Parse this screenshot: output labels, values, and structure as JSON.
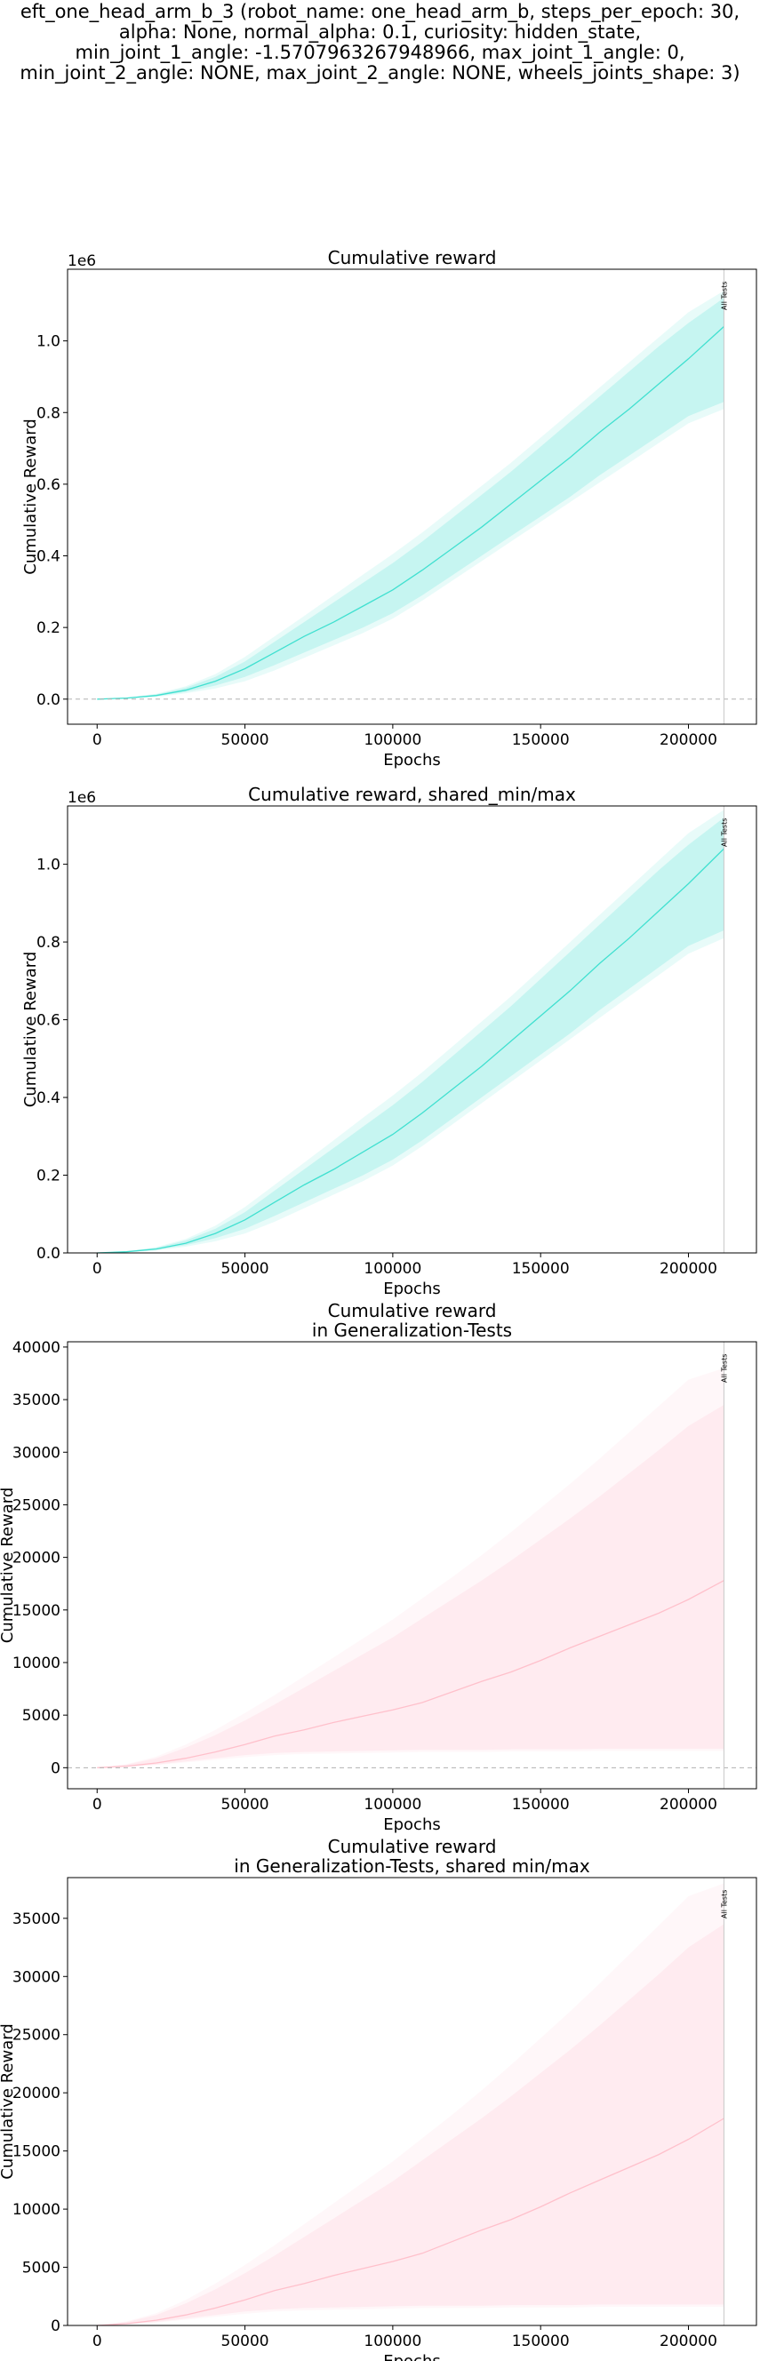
{
  "suptitle_lines": [
    "eft_one_head_arm_b_3 (robot_name: one_head_arm_b, steps_per_epoch: 30,",
    "alpha: None, normal_alpha: 0.1, curiosity: hidden_state,",
    "min_joint_1_angle: -1.5707963267948966, max_joint_1_angle: 0,",
    "min_joint_2_angle: NONE, max_joint_2_angle: NONE, wheels_joints_shape: 3)"
  ],
  "chart_data": [
    {
      "type": "line",
      "title": [
        "Cumulative reward"
      ],
      "xlabel": "Epochs",
      "ylabel": "Cumulative Reward",
      "offset_label": "1e6",
      "xlim": [
        -10000,
        223000
      ],
      "ylim": [
        -70000,
        1200000
      ],
      "xticks": [
        0,
        50000,
        100000,
        150000,
        200000
      ],
      "yticks": [
        0,
        200000,
        400000,
        600000,
        800000,
        1000000
      ],
      "ytick_labels": [
        "0.0",
        "0.2",
        "0.4",
        "0.6",
        "0.8",
        "1.0"
      ],
      "zero_line": true,
      "vline": {
        "x": 212000,
        "label": "All Tests"
      },
      "color": "#40e0d0",
      "series": [
        {
          "x": [
            0,
            10000,
            20000,
            30000,
            40000,
            50000,
            60000,
            70000,
            80000,
            90000,
            100000,
            110000,
            120000,
            130000,
            140000,
            150000,
            160000,
            170000,
            180000,
            190000,
            200000,
            212000
          ],
          "mean": [
            0,
            3000,
            10000,
            25000,
            50000,
            85000,
            130000,
            175000,
            215000,
            260000,
            305000,
            360000,
            420000,
            480000,
            545000,
            610000,
            675000,
            745000,
            810000,
            880000,
            950000,
            1040000
          ],
          "inner_low": [
            0,
            2000,
            8000,
            20000,
            38000,
            62000,
            95000,
            130000,
            165000,
            200000,
            240000,
            290000,
            345000,
            400000,
            455000,
            510000,
            565000,
            625000,
            680000,
            735000,
            790000,
            830000
          ],
          "inner_high": [
            0,
            4000,
            13000,
            32000,
            62000,
            105000,
            160000,
            215000,
            270000,
            325000,
            380000,
            440000,
            505000,
            570000,
            635000,
            705000,
            775000,
            845000,
            915000,
            985000,
            1050000,
            1120000
          ],
          "outer_low": [
            0,
            1500,
            6000,
            16000,
            30000,
            50000,
            80000,
            115000,
            150000,
            185000,
            225000,
            275000,
            330000,
            385000,
            440000,
            495000,
            550000,
            605000,
            660000,
            715000,
            770000,
            810000
          ],
          "outer_high": [
            0,
            5000,
            15000,
            36000,
            70000,
            118000,
            175000,
            232000,
            290000,
            348000,
            405000,
            465000,
            530000,
            595000,
            660000,
            730000,
            800000,
            870000,
            940000,
            1010000,
            1080000,
            1140000
          ]
        }
      ]
    },
    {
      "type": "line",
      "title": [
        "Cumulative reward, shared_min/max"
      ],
      "xlabel": "Epochs",
      "ylabel": "Cumulative Reward",
      "offset_label": "1e6",
      "xlim": [
        -10000,
        223000
      ],
      "ylim": [
        0,
        1150000
      ],
      "xticks": [
        0,
        50000,
        100000,
        150000,
        200000
      ],
      "yticks": [
        0,
        200000,
        400000,
        600000,
        800000,
        1000000
      ],
      "ytick_labels": [
        "0.0",
        "0.2",
        "0.4",
        "0.6",
        "0.8",
        "1.0"
      ],
      "zero_line": false,
      "vline": {
        "x": 212000,
        "label": "All Tests"
      },
      "color": "#40e0d0",
      "series": [
        {
          "x": [
            0,
            10000,
            20000,
            30000,
            40000,
            50000,
            60000,
            70000,
            80000,
            90000,
            100000,
            110000,
            120000,
            130000,
            140000,
            150000,
            160000,
            170000,
            180000,
            190000,
            200000,
            212000
          ],
          "mean": [
            0,
            3000,
            10000,
            25000,
            50000,
            85000,
            130000,
            175000,
            215000,
            260000,
            305000,
            360000,
            420000,
            480000,
            545000,
            610000,
            675000,
            745000,
            810000,
            880000,
            950000,
            1040000
          ],
          "inner_low": [
            0,
            2000,
            8000,
            20000,
            38000,
            62000,
            95000,
            130000,
            165000,
            200000,
            240000,
            290000,
            345000,
            400000,
            455000,
            510000,
            565000,
            625000,
            680000,
            735000,
            790000,
            830000
          ],
          "inner_high": [
            0,
            4000,
            13000,
            32000,
            62000,
            105000,
            160000,
            215000,
            270000,
            325000,
            380000,
            440000,
            505000,
            570000,
            635000,
            705000,
            775000,
            845000,
            915000,
            985000,
            1050000,
            1120000
          ],
          "outer_low": [
            0,
            1500,
            6000,
            16000,
            30000,
            50000,
            80000,
            115000,
            150000,
            185000,
            225000,
            275000,
            330000,
            385000,
            440000,
            495000,
            550000,
            605000,
            660000,
            715000,
            770000,
            810000
          ],
          "outer_high": [
            0,
            5000,
            15000,
            36000,
            70000,
            118000,
            175000,
            232000,
            290000,
            348000,
            405000,
            465000,
            530000,
            595000,
            660000,
            730000,
            800000,
            870000,
            940000,
            1010000,
            1080000,
            1140000
          ]
        }
      ]
    },
    {
      "type": "line",
      "title": [
        "Cumulative reward",
        "in Generalization-Tests"
      ],
      "xlabel": "Epochs",
      "ylabel": "Cumulative Reward",
      "offset_label": "",
      "xlim": [
        -10000,
        223000
      ],
      "ylim": [
        -2000,
        40500
      ],
      "xticks": [
        0,
        50000,
        100000,
        150000,
        200000
      ],
      "yticks": [
        0,
        5000,
        10000,
        15000,
        20000,
        25000,
        30000,
        35000,
        40000
      ],
      "ytick_labels": [
        "0",
        "5000",
        "10000",
        "15000",
        "20000",
        "25000",
        "30000",
        "35000",
        "40000"
      ],
      "zero_line": true,
      "vline": {
        "x": 212000,
        "label": "All Tests"
      },
      "color": "#ffc0cb",
      "series": [
        {
          "x": [
            0,
            10000,
            20000,
            30000,
            40000,
            50000,
            60000,
            70000,
            80000,
            90000,
            100000,
            110000,
            120000,
            130000,
            140000,
            150000,
            160000,
            170000,
            180000,
            190000,
            200000,
            212000
          ],
          "mean": [
            0,
            150,
            450,
            900,
            1500,
            2200,
            3000,
            3600,
            4300,
            4900,
            5500,
            6200,
            7200,
            8200,
            9100,
            10200,
            11400,
            12500,
            13600,
            14700,
            16000,
            17800
          ],
          "inner_low": [
            0,
            100,
            300,
            600,
            900,
            1200,
            1400,
            1500,
            1550,
            1600,
            1650,
            1700,
            1700,
            1700,
            1750,
            1750,
            1750,
            1800,
            1800,
            1800,
            1800,
            1800
          ],
          "inner_high": [
            0,
            300,
            900,
            1900,
            3100,
            4500,
            6000,
            7600,
            9200,
            10800,
            12400,
            14200,
            16000,
            17800,
            19700,
            21700,
            23700,
            25800,
            28000,
            30200,
            32500,
            34500
          ],
          "outer_low": [
            0,
            80,
            250,
            500,
            750,
            1000,
            1200,
            1300,
            1350,
            1400,
            1450,
            1500,
            1500,
            1500,
            1550,
            1550,
            1550,
            1600,
            1600,
            1600,
            1600,
            1600
          ],
          "outer_high": [
            0,
            350,
            1050,
            2200,
            3600,
            5200,
            6900,
            8700,
            10500,
            12300,
            14100,
            16100,
            18100,
            20200,
            22400,
            24700,
            27000,
            29400,
            31900,
            34400,
            36900,
            38000
          ]
        }
      ]
    },
    {
      "type": "line",
      "title": [
        "Cumulative reward",
        "in Generalization-Tests, shared min/max"
      ],
      "xlabel": "Epochs",
      "ylabel": "Cumulative Reward",
      "offset_label": "",
      "xlim": [
        -10000,
        223000
      ],
      "ylim": [
        0,
        38500
      ],
      "xticks": [
        0,
        50000,
        100000,
        150000,
        200000
      ],
      "yticks": [
        0,
        5000,
        10000,
        15000,
        20000,
        25000,
        30000,
        35000
      ],
      "ytick_labels": [
        "0",
        "5000",
        "10000",
        "15000",
        "20000",
        "25000",
        "30000",
        "35000"
      ],
      "zero_line": false,
      "vline": {
        "x": 212000,
        "label": "All Tests"
      },
      "color": "#ffc0cb",
      "series": [
        {
          "x": [
            0,
            10000,
            20000,
            30000,
            40000,
            50000,
            60000,
            70000,
            80000,
            90000,
            100000,
            110000,
            120000,
            130000,
            140000,
            150000,
            160000,
            170000,
            180000,
            190000,
            200000,
            212000
          ],
          "mean": [
            0,
            150,
            450,
            900,
            1500,
            2200,
            3000,
            3600,
            4300,
            4900,
            5500,
            6200,
            7200,
            8200,
            9100,
            10200,
            11400,
            12500,
            13600,
            14700,
            16000,
            17800
          ],
          "inner_low": [
            0,
            100,
            300,
            600,
            900,
            1200,
            1400,
            1500,
            1550,
            1600,
            1650,
            1700,
            1700,
            1700,
            1750,
            1750,
            1750,
            1800,
            1800,
            1800,
            1800,
            1800
          ],
          "inner_high": [
            0,
            300,
            900,
            1900,
            3100,
            4500,
            6000,
            7600,
            9200,
            10800,
            12400,
            14200,
            16000,
            17800,
            19700,
            21700,
            23700,
            25800,
            28000,
            30200,
            32500,
            34500
          ],
          "outer_low": [
            0,
            80,
            250,
            500,
            750,
            1000,
            1200,
            1300,
            1350,
            1400,
            1450,
            1500,
            1500,
            1500,
            1550,
            1550,
            1550,
            1600,
            1600,
            1600,
            1600,
            1600
          ],
          "outer_high": [
            0,
            350,
            1050,
            2200,
            3600,
            5200,
            6900,
            8700,
            10500,
            12300,
            14100,
            16100,
            18100,
            20200,
            22400,
            24700,
            27000,
            29400,
            31900,
            34400,
            36900,
            38000
          ]
        }
      ]
    }
  ]
}
